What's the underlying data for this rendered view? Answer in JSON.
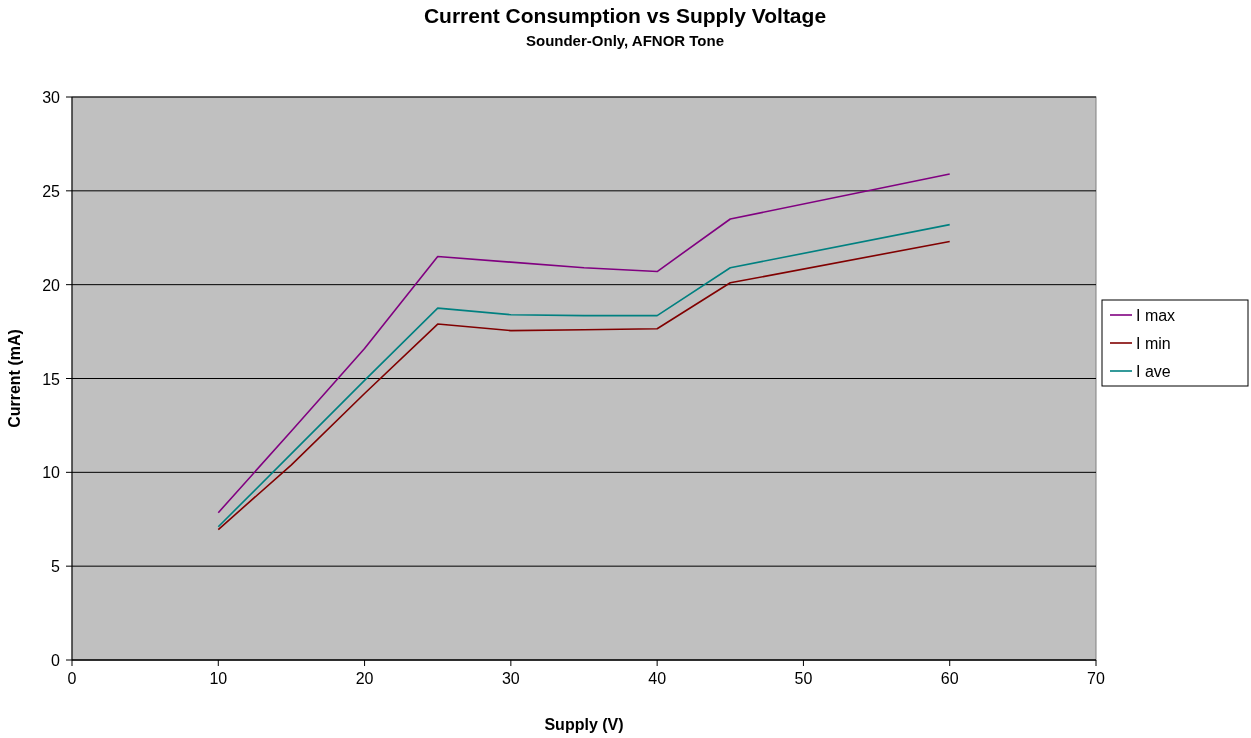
{
  "chart_data": {
    "type": "line",
    "title": "Current Consumption vs Supply Voltage",
    "subtitle": "Sounder-Only, AFNOR Tone",
    "xlabel": "Supply (V)",
    "ylabel": "Current (mA)",
    "x": [
      10,
      15,
      20,
      25,
      30,
      35,
      40,
      45,
      60
    ],
    "series": [
      {
        "name": "I max",
        "color": "#800080",
        "values": [
          7.85,
          12.2,
          16.6,
          21.5,
          21.2,
          20.9,
          20.7,
          23.5,
          25.9
        ]
      },
      {
        "name": "I min",
        "color": "#800000",
        "values": [
          6.95,
          10.4,
          14.2,
          17.9,
          17.55,
          17.6,
          17.65,
          20.1,
          22.3
        ]
      },
      {
        "name": "I ave",
        "color": "#008080",
        "values": [
          7.1,
          11.0,
          14.9,
          18.75,
          18.4,
          18.35,
          18.35,
          20.9,
          23.2
        ]
      }
    ],
    "xlim": [
      0,
      70
    ],
    "xticks": [
      0,
      10,
      20,
      30,
      40,
      50,
      60,
      70
    ],
    "ylim": [
      0,
      30
    ],
    "yticks": [
      0,
      5,
      10,
      15,
      20,
      25,
      30
    ],
    "grid": "y",
    "legend": "right",
    "marker": "none",
    "line_style": "solid"
  }
}
